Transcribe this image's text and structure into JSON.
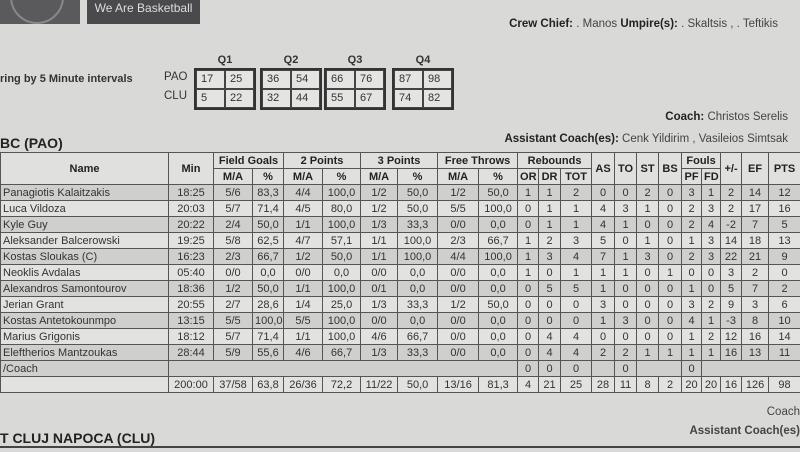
{
  "header": {
    "slogan": "We Are Basketball"
  },
  "officials": {
    "crew_chief_label": "Crew Chief:",
    "crew_chief": ". Manos",
    "umpires_label": "Umpire(s):",
    "umpires": ". Skaltsis , . Teftikis"
  },
  "intervals": {
    "label": "ring by 5 Minute intervals",
    "teams": [
      "PAO",
      "CLU"
    ],
    "quarters": [
      {
        "label": "Q1",
        "PAO": [
          "17",
          "25"
        ],
        "CLU": [
          "5",
          "22"
        ]
      },
      {
        "label": "Q2",
        "PAO": [
          "36",
          "54"
        ],
        "CLU": [
          "32",
          "44"
        ]
      },
      {
        "label": "Q3",
        "PAO": [
          "66",
          "76"
        ],
        "CLU": [
          "55",
          "67"
        ]
      },
      {
        "label": "Q4",
        "PAO": [
          "87",
          "98"
        ],
        "CLU": [
          "74",
          "82"
        ]
      }
    ]
  },
  "team1": {
    "title": "BC (PAO)",
    "coach_label": "Coach:",
    "coach": "Christos Serelis",
    "assistant_label": "Assistant Coach(es):",
    "assistants": "Cenk Yildirim , Vasileios Simtsak",
    "headers": {
      "name": "Name",
      "min": "Min",
      "fg": "Field Goals",
      "p2": "2 Points",
      "p3": "3 Points",
      "ft": "Free Throws",
      "reb": "Rebounds",
      "as": "AS",
      "to": "TO",
      "st": "ST",
      "bs": "BS",
      "fouls": "Fouls",
      "pm": "+/-",
      "ef": "EF",
      "pts": "PTS",
      "ma": "M/A",
      "pct": "%",
      "or": "OR",
      "dr": "DR",
      "tot": "TOT",
      "pf": "PF",
      "fd": "FD"
    },
    "players": [
      [
        "Panagiotis Kalaitzakis",
        "18:25",
        "5/6",
        "83,3",
        "4/4",
        "100,0",
        "1/2",
        "50,0",
        "1/2",
        "50,0",
        "1",
        "1",
        "2",
        "0",
        "0",
        "2",
        "0",
        "3",
        "1",
        "2",
        "14",
        "12"
      ],
      [
        "Luca Vildoza",
        "20:03",
        "5/7",
        "71,4",
        "4/5",
        "80,0",
        "1/2",
        "50,0",
        "5/5",
        "100,0",
        "0",
        "1",
        "1",
        "4",
        "3",
        "1",
        "0",
        "2",
        "3",
        "2",
        "17",
        "16"
      ],
      [
        "Kyle Guy",
        "20:22",
        "2/4",
        "50,0",
        "1/1",
        "100,0",
        "1/3",
        "33,3",
        "0/0",
        "0,0",
        "0",
        "1",
        "1",
        "4",
        "1",
        "0",
        "0",
        "2",
        "4",
        "-2",
        "7",
        "5"
      ],
      [
        "Aleksander Balcerowski",
        "19:25",
        "5/8",
        "62,5",
        "4/7",
        "57,1",
        "1/1",
        "100,0",
        "2/3",
        "66,7",
        "1",
        "2",
        "3",
        "5",
        "0",
        "1",
        "0",
        "1",
        "3",
        "14",
        "18",
        "13"
      ],
      [
        "Kostas Sloukas (C)",
        "16:23",
        "2/3",
        "66,7",
        "1/2",
        "50,0",
        "1/1",
        "100,0",
        "4/4",
        "100,0",
        "1",
        "3",
        "4",
        "7",
        "1",
        "3",
        "0",
        "2",
        "3",
        "22",
        "21",
        "9"
      ],
      [
        "Neoklis Avdalas",
        "05:40",
        "0/0",
        "0,0",
        "0/0",
        "0,0",
        "0/0",
        "0,0",
        "0/0",
        "0,0",
        "1",
        "0",
        "1",
        "1",
        "1",
        "0",
        "1",
        "0",
        "0",
        "3",
        "2",
        "0"
      ],
      [
        "Alexandros Samontourov",
        "18:36",
        "1/2",
        "50,0",
        "1/1",
        "100,0",
        "0/1",
        "0,0",
        "0/0",
        "0,0",
        "0",
        "5",
        "5",
        "1",
        "0",
        "0",
        "0",
        "1",
        "0",
        "5",
        "7",
        "2"
      ],
      [
        "Jerian Grant",
        "20:55",
        "2/7",
        "28,6",
        "1/4",
        "25,0",
        "1/3",
        "33,3",
        "1/2",
        "50,0",
        "0",
        "0",
        "0",
        "3",
        "0",
        "0",
        "0",
        "3",
        "2",
        "9",
        "3",
        "6"
      ],
      [
        "Kostas Antetokounmpo",
        "13:15",
        "5/5",
        "100,0",
        "5/5",
        "100,0",
        "0/0",
        "0,0",
        "0/0",
        "0,0",
        "0",
        "0",
        "0",
        "1",
        "3",
        "0",
        "0",
        "4",
        "1",
        "-3",
        "8",
        "10"
      ],
      [
        "Marius Grigonis",
        "18:12",
        "5/7",
        "71,4",
        "1/1",
        "100,0",
        "4/6",
        "66,7",
        "0/0",
        "0,0",
        "0",
        "4",
        "4",
        "0",
        "0",
        "0",
        "0",
        "1",
        "2",
        "12",
        "16",
        "14"
      ],
      [
        "Eleftherios Mantzoukas",
        "28:44",
        "5/9",
        "55,6",
        "4/6",
        "66,7",
        "1/3",
        "33,3",
        "0/0",
        "0,0",
        "0",
        "4",
        "4",
        "2",
        "2",
        "1",
        "1",
        "1",
        "1",
        "16",
        "13",
        "11"
      ]
    ],
    "coach_row": {
      "label": "/Coach",
      "or": "0",
      "dr": "0",
      "tot": "0",
      "to": "0",
      "pf": "0"
    },
    "totals": [
      "200:00",
      "37/58",
      "63,8",
      "26/36",
      "72,2",
      "11/22",
      "50,0",
      "13/16",
      "81,3",
      "4",
      "21",
      "25",
      "28",
      "11",
      "8",
      "2",
      "20",
      "20",
      "16",
      "126",
      "98"
    ]
  },
  "team2": {
    "title": "T CLUJ NAPOCA (CLU)",
    "coach_label": "Coach",
    "assistant_label": "Assistant Coach(es)"
  }
}
